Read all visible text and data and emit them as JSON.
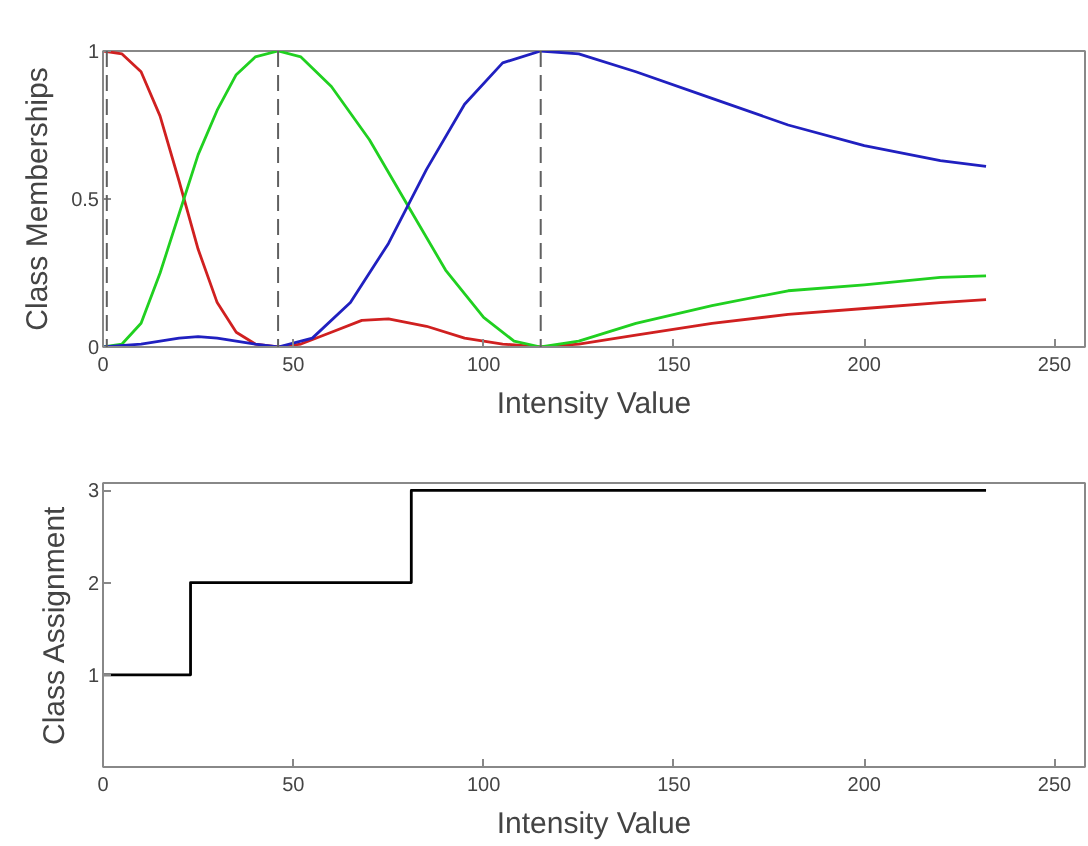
{
  "chart_data": [
    {
      "type": "line",
      "xlabel": "Intensity Value",
      "ylabel": "Class Memberships",
      "xlim": [
        0,
        258
      ],
      "ylim": [
        0,
        1
      ],
      "xticks": [
        0,
        50,
        100,
        150,
        200,
        250
      ],
      "yticks": [
        0,
        0.5,
        1
      ],
      "grid": false,
      "series": [
        {
          "color": "#d02020",
          "x": [
            0,
            5,
            10,
            15,
            20,
            25,
            30,
            35,
            40,
            46,
            52,
            60,
            68,
            75,
            85,
            95,
            105,
            115,
            125,
            140,
            160,
            180,
            200,
            220,
            232
          ],
          "values": [
            1,
            0.99,
            0.93,
            0.78,
            0.56,
            0.33,
            0.15,
            0.05,
            0.01,
            0,
            0.01,
            0.05,
            0.09,
            0.095,
            0.07,
            0.03,
            0.01,
            0,
            0.01,
            0.04,
            0.08,
            0.11,
            0.13,
            0.15,
            0.16
          ]
        },
        {
          "color": "#20d020",
          "x": [
            0,
            5,
            10,
            15,
            20,
            25,
            30,
            35,
            40,
            46,
            52,
            60,
            70,
            80,
            90,
            100,
            108,
            115,
            125,
            140,
            160,
            180,
            200,
            220,
            232
          ],
          "values": [
            0,
            0.01,
            0.08,
            0.25,
            0.45,
            0.65,
            0.8,
            0.92,
            0.98,
            1,
            0.98,
            0.88,
            0.7,
            0.48,
            0.26,
            0.1,
            0.02,
            0,
            0.02,
            0.08,
            0.14,
            0.19,
            0.21,
            0.235,
            0.24
          ]
        },
        {
          "color": "#2020c0",
          "x": [
            0,
            10,
            20,
            25,
            30,
            40,
            46,
            55,
            65,
            75,
            85,
            95,
            105,
            115,
            125,
            140,
            160,
            180,
            200,
            220,
            232
          ],
          "values": [
            0,
            0.01,
            0.03,
            0.035,
            0.03,
            0.01,
            0,
            0.03,
            0.15,
            0.35,
            0.6,
            0.82,
            0.96,
            1,
            0.99,
            0.93,
            0.84,
            0.75,
            0.68,
            0.63,
            0.61
          ]
        }
      ],
      "ref_lines": [
        {
          "axis": "x",
          "value": 1,
          "color": "#606060",
          "line_style": "dashed"
        },
        {
          "axis": "x",
          "value": 46,
          "color": "#606060",
          "line_style": "dashed"
        },
        {
          "axis": "x",
          "value": 115,
          "color": "#606060",
          "line_style": "dashed"
        }
      ]
    },
    {
      "type": "step",
      "xlabel": "Intensity Value",
      "ylabel": "Class Assignment",
      "xlim": [
        0,
        258
      ],
      "ylim": [
        0,
        3.08
      ],
      "xticks": [
        0,
        50,
        100,
        150,
        200,
        250
      ],
      "yticks": [
        1,
        2,
        3
      ],
      "grid": false,
      "series": [
        {
          "color": "#000000",
          "x": [
            0,
            23,
            81,
            232
          ],
          "values": [
            1,
            2,
            3,
            3
          ]
        }
      ]
    }
  ]
}
